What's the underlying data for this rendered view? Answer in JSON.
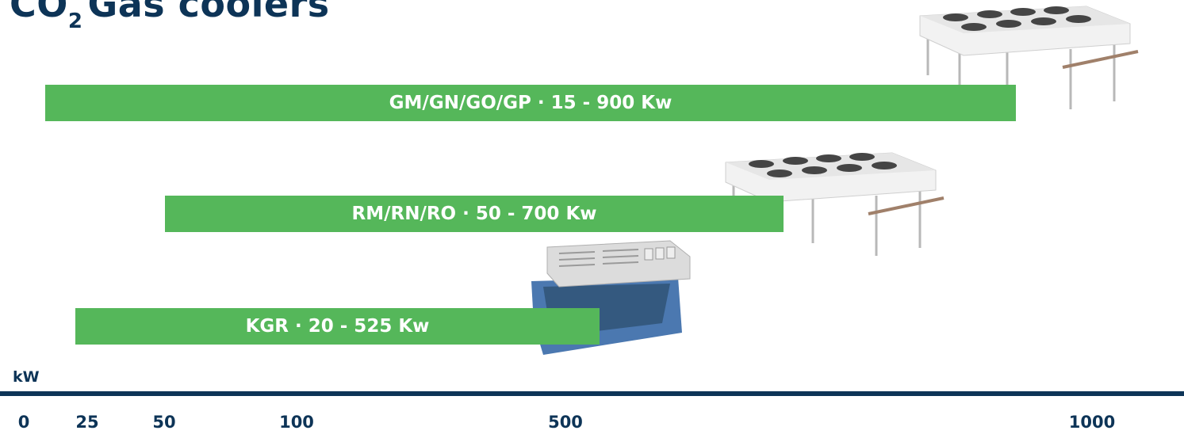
{
  "title": {
    "main": "CO",
    "subscript": "2",
    "rest": "Gas coolers"
  },
  "colors": {
    "bar": "#55b75a",
    "axis": "#0d3457",
    "title": "#0d3457"
  },
  "chart_data": {
    "type": "bar",
    "orientation": "horizontal-range",
    "xlabel": "kW",
    "x_ticks": [
      "0",
      "25",
      "50",
      "100",
      "500",
      "1000"
    ],
    "series": [
      {
        "label": "GM/GN/GO/GP · 15 - 900 Kw",
        "name": "GM/GN/GO/GP",
        "min": 15,
        "max": 900
      },
      {
        "label": "RM/RN/RO · 50 - 700 Kw",
        "name": "RM/RN/RO",
        "min": 50,
        "max": 700
      },
      {
        "label": "KGR · 20 - 525 Kw",
        "name": "KGR",
        "min": 20,
        "max": 525
      }
    ],
    "grid": false,
    "legend": "none"
  },
  "images": [
    {
      "name": "gas-cooler-v-type-large",
      "icon": "gas-cooler-image"
    },
    {
      "name": "gas-cooler-v-type-medium",
      "icon": "gas-cooler-image"
    },
    {
      "name": "gas-cooler-box-type",
      "icon": "gas-cooler-image"
    }
  ]
}
